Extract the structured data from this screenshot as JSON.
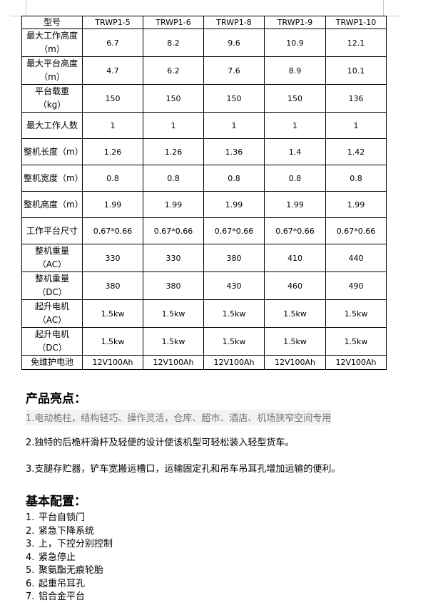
{
  "spec_table": {
    "header": [
      "型号",
      "TRWP1-5",
      "TRWP1-6",
      "TRWP1-8",
      "TRWP1-9",
      "TRWP1-10"
    ],
    "rows": [
      [
        "最大工作高度（m）",
        "6.7",
        "8.2",
        "9.6",
        "10.9",
        "12.1"
      ],
      [
        "最大平台高度（m）",
        "4.7",
        "6.2",
        "7.6",
        "8.9",
        "10.1"
      ],
      [
        "平台载重（kg）",
        "150",
        "150",
        "150",
        "150",
        "136"
      ],
      [
        "最大工作人数",
        "1",
        "1",
        "1",
        "1",
        "1"
      ],
      [
        "整机长度（m）",
        "1.26",
        "1.26",
        "1.36",
        "1.4",
        "1.42"
      ],
      [
        "整机宽度（m）",
        "0.8",
        "0.8",
        "0.8",
        "0.8",
        "0.8"
      ],
      [
        "整机高度（m）",
        "1.99",
        "1.99",
        "1.99",
        "1.99",
        "1.99"
      ],
      [
        "工作平台尺寸",
        "0.67*0.66",
        "0.67*0.66",
        "0.67*0.66",
        "0.67*0.66",
        "0.67*0.66"
      ],
      [
        "整机重量（AC）",
        "330",
        "330",
        "380",
        "410",
        "440"
      ],
      [
        "整机重量（DC）",
        "380",
        "380",
        "430",
        "460",
        "490"
      ],
      [
        "起升电机（AC）",
        "1.5kw",
        "1.5kw",
        "1.5kw",
        "1.5kw",
        "1.5kw"
      ],
      [
        "起升电机（DC）",
        "1.5kw",
        "1.5kw",
        "1.5kw",
        "1.5kw",
        "1.5kw"
      ],
      [
        "免维护电池",
        "12V100Ah",
        "12V100Ah",
        "12V100Ah",
        "12V100Ah",
        "12V100Ah"
      ]
    ]
  },
  "highlights": {
    "title": "产品亮点：",
    "items": [
      "1.电动桅柱，结构轻巧、操作灵活，仓库、超市、酒店、机场狭窄空间专用",
      "2.独特的后桅杆滑杆及轻便的设计使该机型可轻松装入轻型货车。",
      "3.支腿存贮器，铲车宽搬运槽口，运输固定孔和吊车吊耳孔增加运输的便利。"
    ]
  },
  "config": {
    "title": "基本配置：",
    "items": [
      {
        "num": "1.",
        "text": "平台自锁门"
      },
      {
        "num": "2.",
        "text": "紧急下降系统"
      },
      {
        "num": "3.",
        "text": "上，下控分别控制"
      },
      {
        "num": "4.",
        "text": "紧急停止"
      },
      {
        "num": "5.",
        "text": "聚氨酯无痕轮胎"
      },
      {
        "num": "6.",
        "text": "起重吊耳孔"
      },
      {
        "num": "7.",
        "text": "铝合金平台"
      }
    ]
  }
}
